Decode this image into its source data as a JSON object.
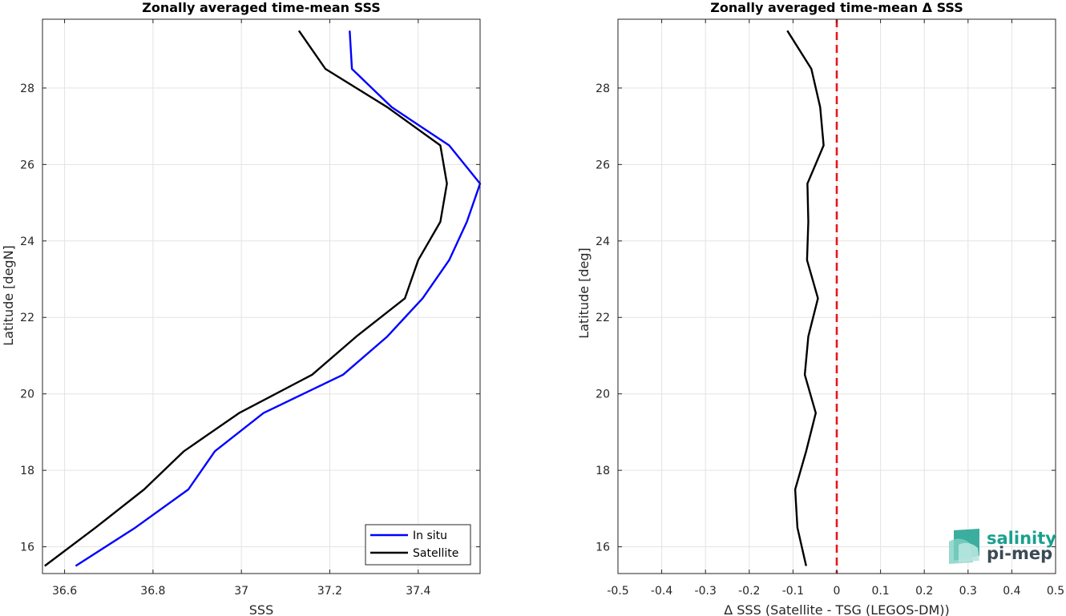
{
  "chart_data": [
    {
      "type": "line",
      "title": "Zonally averaged time-mean SSS",
      "xlabel": "SSS",
      "ylabel": "Latitude [degN]",
      "xlim": [
        36.55,
        37.54
      ],
      "ylim": [
        15.3,
        29.8
      ],
      "xticks": [
        36.6,
        36.8,
        37,
        37.2,
        37.4
      ],
      "xtick_labels": [
        "36.6",
        "36.8",
        "37",
        "37.2",
        "37.4"
      ],
      "yticks": [
        16,
        18,
        20,
        22,
        24,
        26,
        28
      ],
      "ytick_labels": [
        "16",
        "18",
        "20",
        "22",
        "24",
        "26",
        "28"
      ],
      "grid": true,
      "legend_position": "bottom-right",
      "series": [
        {
          "name": "In situ",
          "color": "#0000ff",
          "points": [
            [
              36.625,
              15.5
            ],
            [
              36.76,
              16.5
            ],
            [
              36.88,
              17.5
            ],
            [
              36.94,
              18.5
            ],
            [
              37.05,
              19.5
            ],
            [
              37.23,
              20.5
            ],
            [
              37.33,
              21.5
            ],
            [
              37.41,
              22.5
            ],
            [
              37.47,
              23.5
            ],
            [
              37.51,
              24.5
            ],
            [
              37.54,
              25.5
            ],
            [
              37.47,
              26.5
            ],
            [
              37.34,
              27.5
            ],
            [
              37.25,
              28.5
            ],
            [
              37.245,
              29.5
            ]
          ]
        },
        {
          "name": "Satellite",
          "color": "#000000",
          "points": [
            [
              36.555,
              15.5
            ],
            [
              36.67,
              16.5
            ],
            [
              36.78,
              17.5
            ],
            [
              36.87,
              18.5
            ],
            [
              36.995,
              19.5
            ],
            [
              37.16,
              20.5
            ],
            [
              37.26,
              21.5
            ],
            [
              37.37,
              22.5
            ],
            [
              37.4,
              23.5
            ],
            [
              37.45,
              24.5
            ],
            [
              37.465,
              25.5
            ],
            [
              37.45,
              26.5
            ],
            [
              37.33,
              27.5
            ],
            [
              37.19,
              28.5
            ],
            [
              37.13,
              29.5
            ]
          ]
        }
      ]
    },
    {
      "type": "line",
      "title": "Zonally averaged time-mean Δ SSS",
      "xlabel": "Δ SSS (Satellite - TSG (LEGOS-DM))",
      "ylabel": "Latitude [deg]",
      "xlim": [
        -0.5,
        0.5
      ],
      "ylim": [
        15.3,
        29.8
      ],
      "xticks": [
        -0.5,
        -0.4,
        -0.3,
        -0.2,
        -0.1,
        0,
        0.1,
        0.2,
        0.3,
        0.4,
        0.5
      ],
      "xtick_labels": [
        "-0.5",
        "-0.4",
        "-0.3",
        "-0.2",
        "-0.1",
        "0",
        "0.1",
        "0.2",
        "0.3",
        "0.4",
        "0.5"
      ],
      "yticks": [
        16,
        18,
        20,
        22,
        24,
        26,
        28
      ],
      "ytick_labels": [
        "16",
        "18",
        "20",
        "22",
        "24",
        "26",
        "28"
      ],
      "grid": true,
      "reference_line": {
        "x": 0,
        "color": "#e8161c",
        "style": "dashed"
      },
      "series": [
        {
          "color": "#000000",
          "points": [
            [
              -0.07,
              15.5
            ],
            [
              -0.09,
              16.5
            ],
            [
              -0.095,
              17.5
            ],
            [
              -0.07,
              18.5
            ],
            [
              -0.048,
              19.5
            ],
            [
              -0.073,
              20.5
            ],
            [
              -0.065,
              21.5
            ],
            [
              -0.043,
              22.5
            ],
            [
              -0.068,
              23.5
            ],
            [
              -0.065,
              24.5
            ],
            [
              -0.067,
              25.5
            ],
            [
              -0.03,
              26.5
            ],
            [
              -0.038,
              27.5
            ],
            [
              -0.058,
              28.5
            ],
            [
              -0.113,
              29.5
            ]
          ]
        }
      ]
    }
  ],
  "logo": {
    "line1": "salinity",
    "line2": "pi-mep",
    "color1": "#1aa08e",
    "color2": "#3a4a55"
  }
}
